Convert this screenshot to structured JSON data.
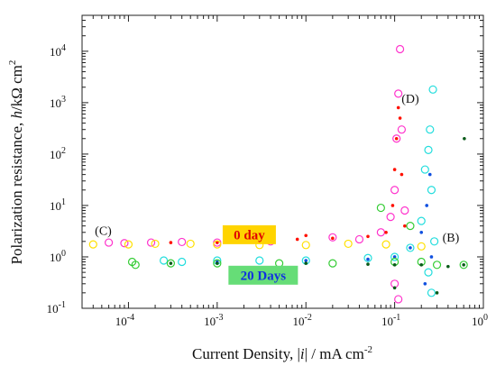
{
  "chart_data": {
    "type": "scatter",
    "title": "",
    "xlabel_prefix": "Current Density, |",
    "xlabel_italic": "i",
    "xlabel_suffix": "| / mA cm",
    "xlabel_exp": "-2",
    "ylabel_prefix": "Polarization resistance, ",
    "ylabel_italic": "h",
    "ylabel_suffix": "/kΩ cm",
    "ylabel_exp": "2",
    "x_scale": "log",
    "y_scale": "log",
    "xlim": [
      3e-05,
      1
    ],
    "ylim": [
      0.1,
      50000
    ],
    "x_ticks": [
      {
        "base": "10",
        "exp": "-4",
        "value": 0.0001
      },
      {
        "base": "10",
        "exp": "-3",
        "value": 0.001
      },
      {
        "base": "10",
        "exp": "-2",
        "value": 0.01
      },
      {
        "base": "10",
        "exp": "-1",
        "value": 0.1
      },
      {
        "base": "10",
        "exp": "0",
        "value": 1
      }
    ],
    "y_ticks": [
      {
        "base": "10",
        "exp": "-1",
        "value": 0.1
      },
      {
        "base": "10",
        "exp": "0",
        "value": 1
      },
      {
        "base": "10",
        "exp": "1",
        "value": 10
      },
      {
        "base": "10",
        "exp": "2",
        "value": 100
      },
      {
        "base": "10",
        "exp": "3",
        "value": 1000
      },
      {
        "base": "10",
        "exp": "4",
        "value": 10000
      }
    ],
    "grid": false,
    "annotations": [
      {
        "text": "(C)",
        "x": 5.2e-05,
        "y": 2.7
      },
      {
        "text": "(D)",
        "x": 0.15,
        "y": 1000
      },
      {
        "text": "(B)",
        "x": 0.43,
        "y": 2.0
      }
    ],
    "legend": [
      {
        "label": "0 day",
        "bg": "#ffd400",
        "text_color": "#e00000",
        "x": 0.0023,
        "y": 2.7
      },
      {
        "label": "20 Days",
        "bg": "#66dd77",
        "text_color": "#1030e0",
        "x": 0.0033,
        "y": 0.44
      }
    ],
    "series": [
      {
        "color": "#ff33cc",
        "marker": "open-circle",
        "points": [
          [
            6e-05,
            1.9
          ],
          [
            9e-05,
            1.85
          ],
          [
            0.00018,
            1.9
          ],
          [
            0.0004,
            1.95
          ],
          [
            0.001,
            1.9
          ],
          [
            0.004,
            2.0
          ],
          [
            0.02,
            2.4
          ],
          [
            0.04,
            2.2
          ],
          [
            0.07,
            3.0
          ],
          [
            0.09,
            6
          ],
          [
            0.1,
            20
          ],
          [
            0.105,
            200
          ],
          [
            0.11,
            1500
          ],
          [
            0.115,
            11000
          ],
          [
            0.12,
            300
          ],
          [
            0.13,
            8
          ],
          [
            0.11,
            0.15
          ],
          [
            0.1,
            0.3
          ]
        ]
      },
      {
        "color": "#ff1100",
        "marker": "dot",
        "points": [
          [
            0.0003,
            1.9
          ],
          [
            0.001,
            1.9
          ],
          [
            0.003,
            1.95
          ],
          [
            0.008,
            2.2
          ],
          [
            0.01,
            2.6
          ],
          [
            0.02,
            2.3
          ],
          [
            0.05,
            2.5
          ],
          [
            0.08,
            3
          ],
          [
            0.095,
            10
          ],
          [
            0.1,
            50
          ],
          [
            0.105,
            200
          ],
          [
            0.11,
            800
          ],
          [
            0.115,
            500
          ],
          [
            0.12,
            40
          ],
          [
            0.13,
            4
          ]
        ]
      },
      {
        "color": "#ffe000",
        "marker": "open-circle",
        "points": [
          [
            4e-05,
            1.75
          ],
          [
            0.0001,
            1.75
          ],
          [
            0.0002,
            1.8
          ],
          [
            0.0005,
            1.8
          ],
          [
            0.001,
            1.75
          ],
          [
            0.003,
            1.7
          ],
          [
            0.01,
            1.7
          ],
          [
            0.03,
            1.8
          ],
          [
            0.08,
            1.75
          ],
          [
            0.2,
            1.6
          ]
        ]
      },
      {
        "color": "#22dddd",
        "marker": "open-circle",
        "points": [
          [
            0.00025,
            0.85
          ],
          [
            0.0004,
            0.8
          ],
          [
            0.001,
            0.85
          ],
          [
            0.003,
            0.85
          ],
          [
            0.01,
            0.85
          ],
          [
            0.05,
            0.95
          ],
          [
            0.1,
            1.0
          ],
          [
            0.15,
            1.5
          ],
          [
            0.2,
            5
          ],
          [
            0.22,
            50
          ],
          [
            0.24,
            120
          ],
          [
            0.25,
            300
          ],
          [
            0.27,
            1800
          ],
          [
            0.26,
            20
          ],
          [
            0.24,
            0.5
          ],
          [
            0.26,
            0.2
          ],
          [
            0.28,
            2
          ]
        ]
      },
      {
        "color": "#1050e0",
        "marker": "dot",
        "points": [
          [
            0.001,
            0.8
          ],
          [
            0.01,
            0.85
          ],
          [
            0.05,
            0.9
          ],
          [
            0.1,
            1.0
          ],
          [
            0.15,
            1.5
          ],
          [
            0.2,
            3
          ],
          [
            0.23,
            10
          ],
          [
            0.25,
            40
          ],
          [
            0.22,
            0.3
          ],
          [
            0.26,
            1
          ]
        ]
      },
      {
        "color": "#33cc33",
        "marker": "open-circle",
        "points": [
          [
            0.00011,
            0.8
          ],
          [
            0.00012,
            0.7
          ],
          [
            0.0003,
            0.75
          ],
          [
            0.001,
            0.75
          ],
          [
            0.005,
            0.75
          ],
          [
            0.02,
            0.75
          ],
          [
            0.1,
            0.8
          ],
          [
            0.2,
            0.8
          ],
          [
            0.3,
            0.7
          ],
          [
            0.6,
            0.7
          ],
          [
            0.07,
            9
          ],
          [
            0.15,
            4
          ]
        ]
      },
      {
        "color": "#0a5a1a",
        "marker": "dot",
        "points": [
          [
            0.0003,
            0.75
          ],
          [
            0.001,
            0.75
          ],
          [
            0.01,
            0.75
          ],
          [
            0.05,
            0.72
          ],
          [
            0.1,
            0.7
          ],
          [
            0.2,
            0.7
          ],
          [
            0.4,
            0.65
          ],
          [
            0.6,
            0.7
          ],
          [
            0.61,
            200
          ],
          [
            0.1,
            0.25
          ],
          [
            0.3,
            0.2
          ]
        ]
      }
    ]
  }
}
